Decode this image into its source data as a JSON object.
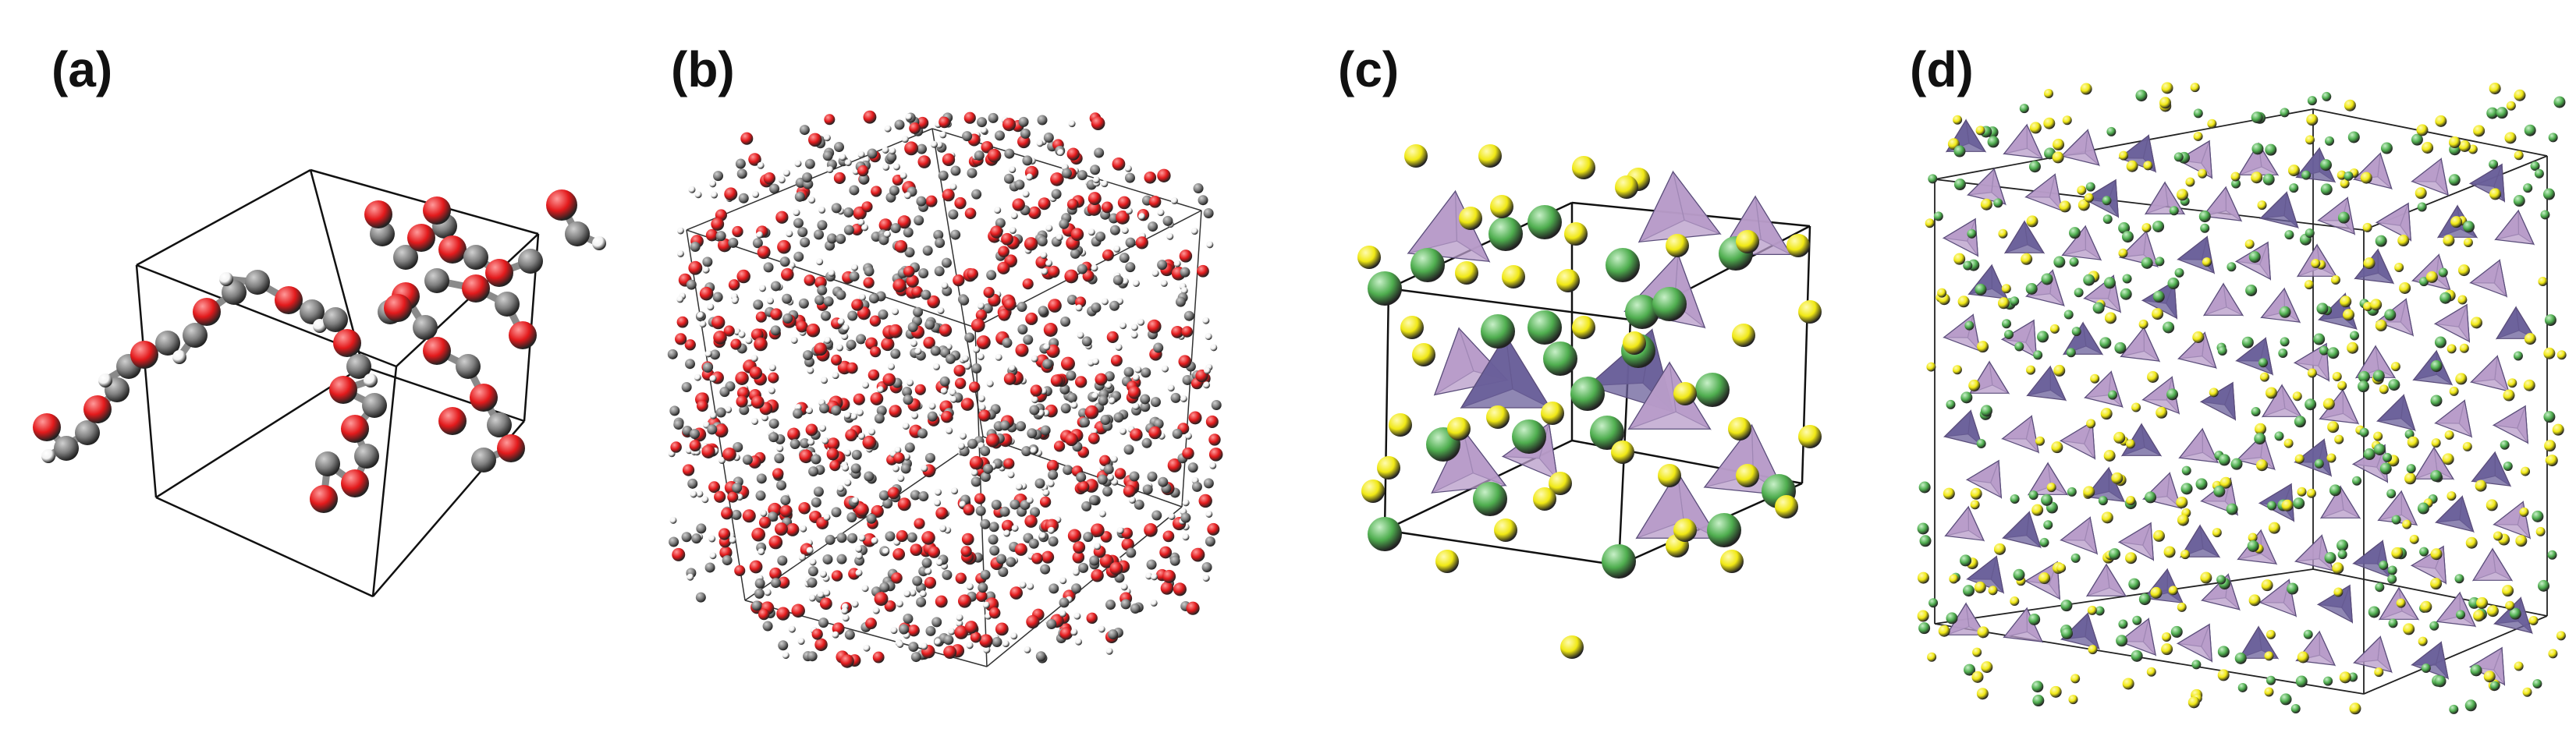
{
  "panels": [
    {
      "label": "(a)"
    },
    {
      "label": "(b)"
    },
    {
      "label": "(c)"
    },
    {
      "label": "(d)"
    }
  ],
  "colors": {
    "oxygen": "#e31a1c",
    "carbon": "#7f7f7f",
    "hydrogen": "#f2f2f2",
    "sulfur": "#f0e814",
    "lithium": "#4fae4f",
    "tetrahedron_light": "#b79bc8",
    "tetrahedron_dark": "#6a5f9a",
    "box_edge": "#111111"
  }
}
